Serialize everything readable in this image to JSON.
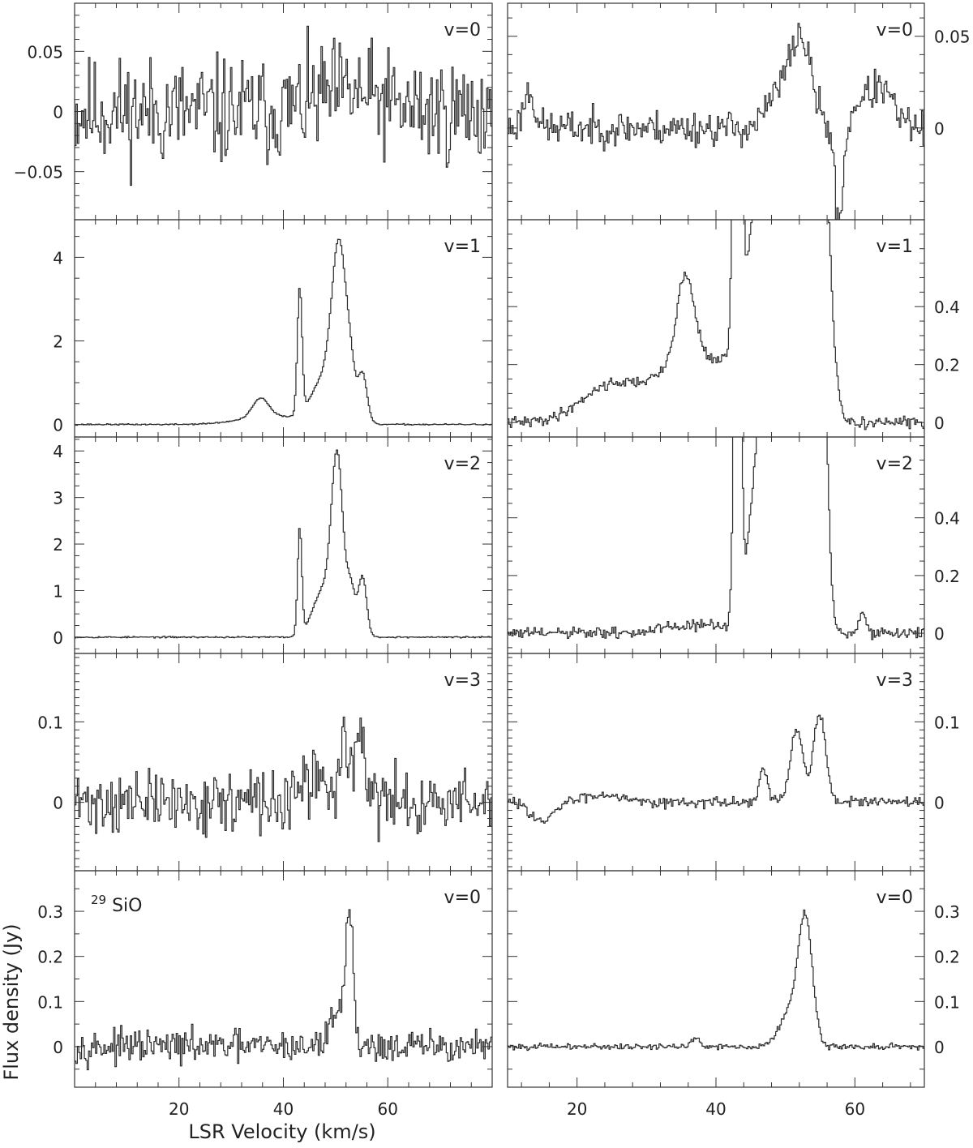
{
  "figure": {
    "x_axis_label": "LSR Velocity (km/s)",
    "y_axis_label": "Flux density (Jy)",
    "isotope_label": {
      "superscript": "29",
      "text": "SiO"
    },
    "line_color": "#2a2a2a",
    "frame_color": "#333333"
  },
  "chart_data": [
    {
      "type": "line",
      "step": true,
      "column": "left",
      "row": 0,
      "label": "v=0",
      "xlim": [
        0,
        80
      ],
      "ylim": [
        -0.09,
        0.09
      ],
      "xticks": [
        20,
        40,
        60
      ],
      "yticks": [
        -0.05,
        0,
        0.05
      ],
      "ytick_labels": [
        "−0.05",
        "0",
        "0.05"
      ],
      "minor_y": 0.01,
      "minor_x": 4,
      "noise": 0.028,
      "seed": 11,
      "peaks": [
        [
          52,
          0.015,
          6
        ]
      ]
    },
    {
      "type": "line",
      "step": true,
      "column": "right",
      "row": 0,
      "label": "v=0",
      "xlim": [
        10,
        70
      ],
      "ylim": [
        -0.05,
        0.068
      ],
      "xticks": [
        20,
        40,
        60
      ],
      "yticks": [
        0,
        0.05
      ],
      "ytick_labels": [
        "0",
        "0.05"
      ],
      "minor_y": 0.01,
      "minor_x": 4,
      "noise": 0.006,
      "seed": 23,
      "peaks": [
        [
          52,
          0.05,
          1.6
        ],
        [
          48.5,
          0.015,
          1.5
        ],
        [
          63.5,
          0.022,
          1.8
        ],
        [
          13,
          0.02,
          0.8
        ],
        [
          57.6,
          -0.05,
          0.6
        ],
        [
          60.5,
          0.01,
          1
        ]
      ]
    },
    {
      "type": "line",
      "step": true,
      "column": "left",
      "row": 1,
      "label": "v=1",
      "xlim": [
        0,
        80
      ],
      "ylim": [
        -0.3,
        4.9
      ],
      "xticks": [
        20,
        40,
        60
      ],
      "yticks": [
        0,
        2,
        4
      ],
      "ytick_labels": [
        "0",
        "2",
        "4"
      ],
      "minor_y": 0.5,
      "minor_x": 4,
      "noise": 0.01,
      "seed": 37,
      "peaks": [
        [
          43.0,
          3.0,
          0.45
        ],
        [
          50.6,
          4.0,
          1.4
        ],
        [
          52.8,
          0.8,
          0.8
        ],
        [
          55.0,
          1.2,
          0.9
        ],
        [
          35.5,
          0.45,
          1.5
        ],
        [
          47.5,
          1.0,
          2.3
        ],
        [
          38.0,
          0.2,
          6
        ]
      ]
    },
    {
      "type": "line",
      "step": true,
      "column": "right",
      "row": 1,
      "label": "v=1",
      "xlim": [
        10,
        70
      ],
      "ylim": [
        -0.05,
        0.7
      ],
      "xticks": [
        20,
        40,
        60
      ],
      "yticks": [
        0,
        0.2,
        0.4
      ],
      "ytick_labels": [
        "0",
        "0.2",
        "0.4"
      ],
      "minor_y": 0.05,
      "minor_x": 4,
      "noise": 0.012,
      "seed": 41,
      "peaks": [
        [
          43.0,
          3.0,
          0.45
        ],
        [
          50.6,
          4.0,
          1.4
        ],
        [
          52.8,
          0.8,
          0.8
        ],
        [
          55.0,
          1.2,
          0.9
        ],
        [
          35.5,
          0.3,
          1.3
        ],
        [
          47.5,
          1.0,
          2.3
        ],
        [
          38.0,
          0.22,
          7
        ],
        [
          24,
          0.1,
          4
        ],
        [
          56.5,
          0.2,
          0.8
        ]
      ]
    },
    {
      "type": "line",
      "step": true,
      "column": "left",
      "row": 2,
      "label": "v=2",
      "xlim": [
        0,
        80
      ],
      "ylim": [
        -0.35,
        4.3
      ],
      "xticks": [
        20,
        40,
        60
      ],
      "yticks": [
        0,
        1,
        2,
        3,
        4
      ],
      "ytick_labels": [
        "0",
        "1",
        "2",
        "3",
        "4"
      ],
      "minor_y": 0.25,
      "minor_x": 4,
      "noise": 0.01,
      "seed": 53,
      "peaks": [
        [
          43.0,
          2.3,
          0.4
        ],
        [
          50.2,
          3.6,
          1.1
        ],
        [
          52.8,
          1.0,
          0.8
        ],
        [
          55.0,
          1.3,
          0.8
        ],
        [
          47.5,
          1.0,
          2.0
        ]
      ]
    },
    {
      "type": "line",
      "step": true,
      "column": "right",
      "row": 2,
      "label": "v=2",
      "xlim": [
        10,
        70
      ],
      "ylim": [
        -0.07,
        0.68
      ],
      "xticks": [
        20,
        40,
        60
      ],
      "yticks": [
        0,
        0.2,
        0.4
      ],
      "ytick_labels": [
        "0",
        "0.2",
        "0.4"
      ],
      "minor_y": 0.05,
      "minor_x": 4,
      "noise": 0.013,
      "seed": 61,
      "peaks": [
        [
          43.0,
          2.3,
          0.4
        ],
        [
          50.2,
          3.6,
          1.1
        ],
        [
          52.8,
          1.0,
          0.8
        ],
        [
          55.0,
          1.3,
          0.8
        ],
        [
          47.5,
          1.0,
          2.0
        ],
        [
          37,
          0.03,
          4
        ],
        [
          61,
          0.07,
          0.5
        ]
      ]
    },
    {
      "type": "line",
      "step": true,
      "column": "left",
      "row": 3,
      "label": "v=3",
      "xlim": [
        0,
        80
      ],
      "ylim": [
        -0.085,
        0.185
      ],
      "xticks": [
        20,
        40,
        60
      ],
      "yticks": [
        0,
        0.1
      ],
      "ytick_labels": [
        "0",
        "0.1"
      ],
      "minor_y": 0.01,
      "minor_x": 4,
      "noise": 0.024,
      "seed": 71,
      "peaks": [
        [
          51.5,
          0.08,
          0.9
        ],
        [
          54.5,
          0.1,
          0.8
        ],
        [
          46,
          0.03,
          2
        ]
      ]
    },
    {
      "type": "line",
      "step": true,
      "column": "right",
      "row": 3,
      "label": "v=3",
      "xlim": [
        10,
        70
      ],
      "ylim": [
        -0.085,
        0.185
      ],
      "xticks": [
        20,
        40,
        60
      ],
      "yticks": [
        0,
        0.1
      ],
      "ytick_labels": [
        "0",
        "0.1"
      ],
      "minor_y": 0.01,
      "minor_x": 4,
      "noise": 0.004,
      "seed": 83,
      "peaks": [
        [
          51.5,
          0.09,
          0.9
        ],
        [
          54.8,
          0.11,
          0.9
        ],
        [
          46.7,
          0.04,
          0.6
        ],
        [
          15,
          -0.025,
          1.5
        ],
        [
          24,
          0.01,
          3
        ]
      ]
    },
    {
      "type": "line",
      "step": true,
      "column": "left",
      "row": 4,
      "label": "v=0",
      "xlim": [
        0,
        80
      ],
      "ylim": [
        -0.09,
        0.39
      ],
      "xticks": [
        20,
        40,
        60
      ],
      "yticks": [
        0,
        0.1,
        0.2,
        0.3
      ],
      "ytick_labels": [
        "0",
        "0.1",
        "0.2",
        "0.3"
      ],
      "minor_y": 0.05,
      "minor_x": 4,
      "noise": 0.022,
      "seed": 97,
      "peaks": [
        [
          52.6,
          0.27,
          0.7
        ],
        [
          50.5,
          0.09,
          1.5
        ]
      ]
    },
    {
      "type": "line",
      "step": true,
      "column": "right",
      "row": 4,
      "label": "v=0",
      "xlim": [
        10,
        70
      ],
      "ylim": [
        -0.09,
        0.39
      ],
      "xticks": [
        20,
        40,
        60
      ],
      "yticks": [
        0,
        0.1,
        0.2,
        0.3
      ],
      "ytick_labels": [
        "0",
        "0.1",
        "0.2",
        "0.3"
      ],
      "minor_y": 0.05,
      "minor_x": 4,
      "noise": 0.004,
      "seed": 101,
      "peaks": [
        [
          52.8,
          0.26,
          1.0
        ],
        [
          50.8,
          0.08,
          1.6
        ],
        [
          37,
          0.02,
          0.6
        ]
      ]
    }
  ]
}
